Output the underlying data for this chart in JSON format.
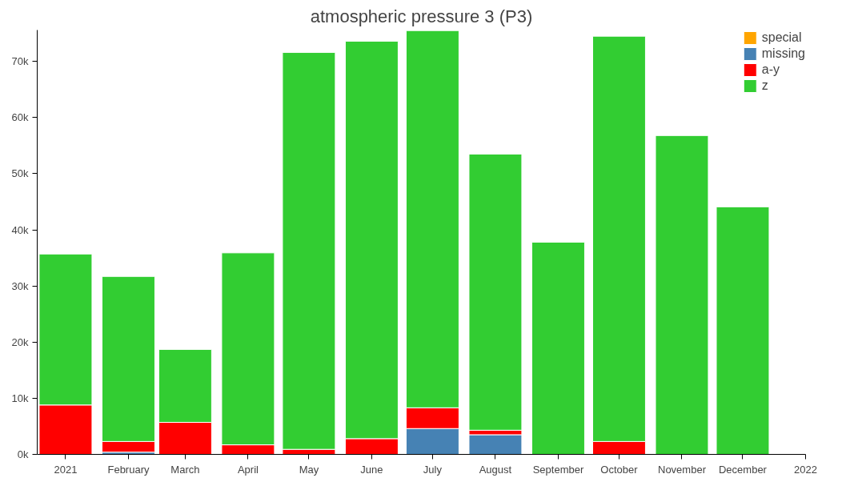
{
  "chart_data": {
    "type": "bar",
    "title": "atmospheric pressure 3 (P3)",
    "stacked": true,
    "grid": false,
    "legend": "top right",
    "x": [
      "2021-01",
      "2021-02",
      "2021-03",
      "2021-04",
      "2021-05",
      "2021-06",
      "2021-07",
      "2021-08",
      "2021-09",
      "2021-10",
      "2021-11",
      "2021-12"
    ],
    "xlim": [
      "2020-12-18",
      "2022-01-01"
    ],
    "xticks": [
      {
        "value": "2021-01",
        "label": "2021"
      },
      {
        "value": "2021-02",
        "label": "February"
      },
      {
        "value": "2021-03",
        "label": "March"
      },
      {
        "value": "2021-04",
        "label": "April"
      },
      {
        "value": "2021-05",
        "label": "May"
      },
      {
        "value": "2021-06",
        "label": "June"
      },
      {
        "value": "2021-07",
        "label": "July"
      },
      {
        "value": "2021-08",
        "label": "August"
      },
      {
        "value": "2021-09",
        "label": "September"
      },
      {
        "value": "2021-10",
        "label": "October"
      },
      {
        "value": "2021-11",
        "label": "November"
      },
      {
        "value": "2021-12",
        "label": "December"
      },
      {
        "value": "2022-01",
        "label": "2022"
      }
    ],
    "ylim": [
      0,
      75600
    ],
    "yticks": [
      {
        "value": 0,
        "label": "0k"
      },
      {
        "value": 10000,
        "label": "10k"
      },
      {
        "value": 20000,
        "label": "20k"
      },
      {
        "value": 30000,
        "label": "30k"
      },
      {
        "value": 40000,
        "label": "40k"
      },
      {
        "value": 50000,
        "label": "50k"
      },
      {
        "value": 60000,
        "label": "60k"
      },
      {
        "value": 70000,
        "label": "70k"
      }
    ],
    "series": [
      {
        "name": "special",
        "color": "#ffa500",
        "values": [
          0,
          0,
          0,
          0,
          0,
          0,
          0,
          0,
          0,
          0,
          0,
          0
        ]
      },
      {
        "name": "missing",
        "color": "#4682b4",
        "values": [
          0,
          400,
          0,
          0,
          0,
          0,
          4600,
          3500,
          0,
          0,
          0,
          0
        ]
      },
      {
        "name": "a-y",
        "color": "#ff0000",
        "values": [
          8800,
          1900,
          5700,
          1700,
          900,
          2800,
          3700,
          800,
          0,
          2300,
          0,
          0
        ]
      },
      {
        "name": "z",
        "color": "#32cd32",
        "values": [
          26900,
          29400,
          13000,
          34200,
          70700,
          70800,
          67200,
          49200,
          37800,
          72200,
          56800,
          44100
        ]
      }
    ]
  }
}
